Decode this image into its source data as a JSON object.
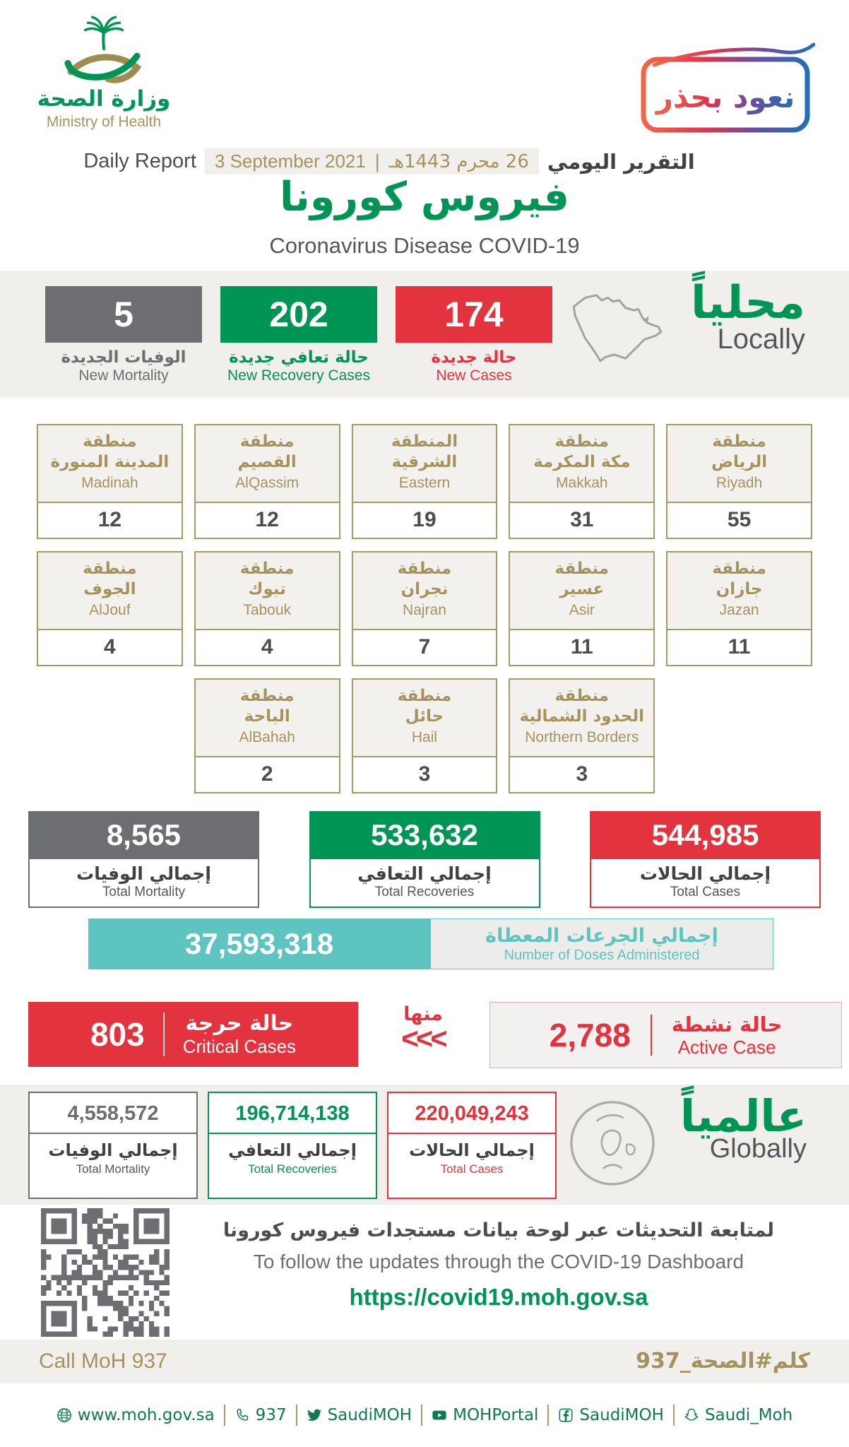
{
  "brand": {
    "ministry_ar": "وزارة الصحة",
    "ministry_en": "Ministry of Health",
    "badge_ar": "نعود بحذر"
  },
  "report": {
    "label_en": "Daily Report",
    "date_en": "3 September 2021",
    "chip_sep": "|",
    "date_ar": "26 محرم 1443هـ",
    "label_ar": "التقرير اليومي",
    "title_ar": "فيروس كورونا",
    "title_en": "Coronavirus Disease COVID-19"
  },
  "local": {
    "heading_ar": "محلياً",
    "heading_en": "Locally",
    "new_mortality": {
      "value": "5",
      "label_ar": "الوفيات الجديدة",
      "label_en": "New Mortality"
    },
    "new_recoveries": {
      "value": "202",
      "label_ar": "حالة تعافي جديدة",
      "label_en": "New Recovery Cases"
    },
    "new_cases": {
      "value": "174",
      "label_ar": "حالة جديدة",
      "label_en": "New Cases"
    },
    "regions": [
      {
        "ar1": "منطقة",
        "ar2": "المدينة المنورة",
        "en": "Madinah",
        "value": "12"
      },
      {
        "ar1": "منطقة",
        "ar2": "القصيم",
        "en": "AlQassim",
        "value": "12"
      },
      {
        "ar1": "المنطقة",
        "ar2": "الشرقية",
        "en": "Eastern",
        "value": "19"
      },
      {
        "ar1": "منطقة",
        "ar2": "مكة المكرمة",
        "en": "Makkah",
        "value": "31"
      },
      {
        "ar1": "منطقة",
        "ar2": "الرياض",
        "en": "Riyadh",
        "value": "55"
      },
      {
        "ar1": "منطقة",
        "ar2": "الجوف",
        "en": "AlJouf",
        "value": "4"
      },
      {
        "ar1": "منطقة",
        "ar2": "تبوك",
        "en": "Tabouk",
        "value": "4"
      },
      {
        "ar1": "منطقة",
        "ar2": "نجران",
        "en": "Najran",
        "value": "7"
      },
      {
        "ar1": "منطقة",
        "ar2": "عسير",
        "en": "Asir",
        "value": "11"
      },
      {
        "ar1": "منطقة",
        "ar2": "جازان",
        "en": "Jazan",
        "value": "11"
      },
      {
        "ar1": "منطقة",
        "ar2": "الباحة",
        "en": "AlBahah",
        "value": "2"
      },
      {
        "ar1": "منطقة",
        "ar2": "حائل",
        "en": "Hail",
        "value": "3"
      },
      {
        "ar1": "منطقة",
        "ar2": "الحدود الشمالية",
        "en": "Northern Borders",
        "value": "3"
      }
    ],
    "total_mortality": {
      "value": "8,565",
      "label_ar": "إجمالي الوفيات",
      "label_en": "Total Mortality"
    },
    "total_recoveries": {
      "value": "533,632",
      "label_ar": "إجمالي التعافي",
      "label_en": "Total Recoveries"
    },
    "total_cases": {
      "value": "544,985",
      "label_ar": "إجمالي الحالات",
      "label_en": "Total Cases"
    },
    "doses": {
      "value": "37,593,318",
      "label_ar": "إجمالي الجرعات المعطاة",
      "label_en": "Number of Doses Administered"
    },
    "critical": {
      "value": "803",
      "label_ar": "حالة حرجة",
      "label_en": "Critical Cases"
    },
    "of_which_ar": "منها",
    "chevrons": "<<<",
    "active": {
      "value": "2,788",
      "label_ar": "حالة نشطة",
      "label_en": "Active Case"
    }
  },
  "global": {
    "heading_ar": "عالمياً",
    "heading_en": "Globally",
    "total_mortality": {
      "value": "4,558,572",
      "label_ar": "إجمالي الوفيات",
      "label_en": "Total Mortality"
    },
    "total_recoveries": {
      "value": "196,714,138",
      "label_ar": "إجمالي التعافي",
      "label_en": "Total Recoveries"
    },
    "total_cases": {
      "value": "220,049,243",
      "label_ar": "إجمالي الحالات",
      "label_en": "Total Cases"
    }
  },
  "dashboard": {
    "line_ar": "لمتابعة التحديثات عبر لوحة بيانات مستجدات فيروس كورونا",
    "line_en": "To follow the updates through the COVID-19 Dashboard",
    "url": "https://covid19.moh.gov.sa"
  },
  "footer": {
    "call_en": "Call MoH 937",
    "call_ar": "كلم#الصحة_937",
    "links": [
      {
        "icon": "globe-icon",
        "label": "www.moh.gov.sa"
      },
      {
        "icon": "phone-icon",
        "label": "937"
      },
      {
        "icon": "twitter-icon",
        "label": "SaudiMOH"
      },
      {
        "icon": "youtube-icon",
        "label": "MOHPortal"
      },
      {
        "icon": "facebook-icon",
        "label": "SaudiMOH"
      },
      {
        "icon": "snapchat-icon",
        "label": "Saudi_Moh"
      }
    ]
  },
  "colors": {
    "green": "#009455",
    "red": "#e2333e",
    "gray": "#6d6e71",
    "gold": "#a5925c",
    "teal": "#5ec4bf"
  }
}
